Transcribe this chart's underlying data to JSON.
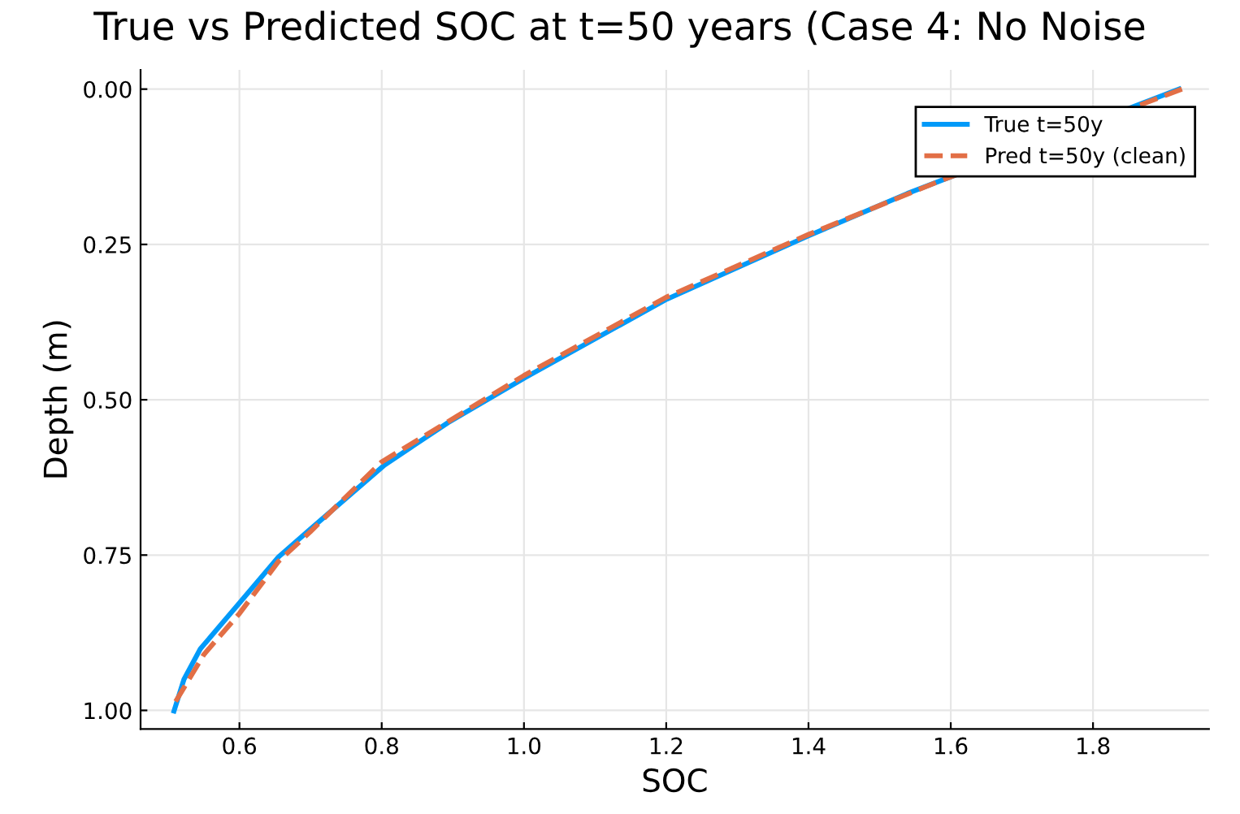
{
  "chart_data": {
    "type": "line",
    "title": "True vs Predicted SOC at t=50 years (Case 4: No Noise",
    "xlabel": "SOC",
    "ylabel": "Depth (m)",
    "xlim": [
      0.461,
      1.963
    ],
    "xticks": [
      0.6,
      0.8,
      {
        "value": 1,
        "label": "1.0"
      },
      1.2,
      1.4,
      1.6,
      1.8
    ],
    "ylim": [
      1.03,
      -0.031
    ],
    "yticks": [
      {
        "value": 0,
        "label": "0.00"
      },
      {
        "value": 0.25,
        "label": "0.25"
      },
      {
        "value": 0.5,
        "label": "0.50"
      },
      {
        "value": 0.75,
        "label": "0.75"
      },
      {
        "value": 1,
        "label": "1.00"
      }
    ],
    "grid": true,
    "legend": "top right",
    "series": [
      {
        "name": "True t=50y",
        "color": "#009af9",
        "line_style": "solid",
        "x": [
          1.921,
          1.58,
          1.539,
          1.4,
          1.201,
          1.002,
          0.893,
          0.804,
          0.7,
          0.655,
          0.6,
          0.545,
          0.522,
          0.508
        ],
        "values": [
          0,
          0.15,
          0.168,
          0.236,
          0.338,
          0.464,
          0.537,
          0.605,
          0.708,
          0.753,
          0.827,
          0.901,
          0.95,
          1.001
        ]
      },
      {
        "name": "Pred t=50y (clean)",
        "color": "#e26f46",
        "line_style": "dashed",
        "x": [
          1.925,
          1.58,
          1.4,
          1.2,
          1.0,
          0.8,
          0.7,
          0.655,
          0.6,
          0.55,
          0.507
        ],
        "values": [
          0,
          0.15,
          0.234,
          0.335,
          0.461,
          0.6,
          0.712,
          0.76,
          0.844,
          0.91,
          0.992
        ]
      }
    ]
  }
}
